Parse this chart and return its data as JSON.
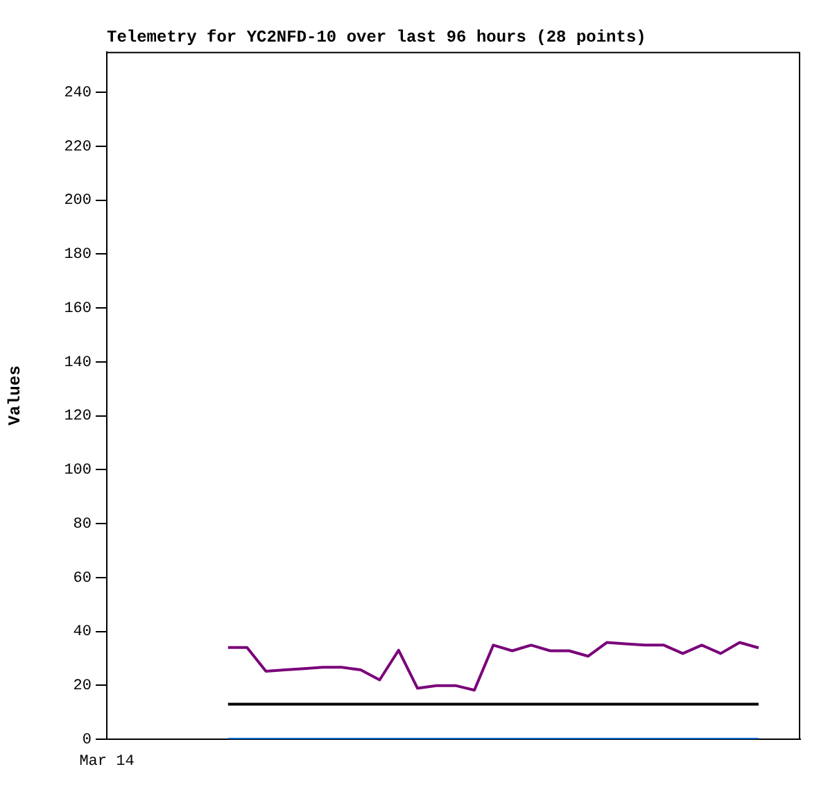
{
  "chart_data": {
    "type": "line",
    "title": "Telemetry for YC2NFD-10 over last 96 hours (28 points)",
    "ylabel": "Values",
    "categories": [
      null,
      null,
      null,
      null,
      null,
      null,
      null,
      null,
      null,
      null,
      null,
      null,
      null,
      null,
      null,
      null,
      null,
      null,
      null,
      null,
      null,
      null,
      null,
      null,
      null,
      null,
      null,
      null,
      null
    ],
    "series": [
      {
        "color": "#7a007a",
        "values": [
          34,
          34,
          25.2,
          25.7,
          26.2,
          26.7,
          26.7,
          25.7,
          22,
          33,
          18.9,
          19.9,
          19.9,
          18.2,
          34.9,
          32.8,
          34.9,
          32.8,
          32.8,
          30.8,
          35.9,
          35.4,
          34.9,
          34.9,
          31.8,
          34.9,
          31.8,
          35.9,
          33.9
        ]
      },
      {
        "color": "#000000",
        "values": [
          13,
          13,
          13,
          13,
          13,
          13,
          13,
          13,
          13,
          13,
          13,
          13,
          13,
          13,
          13,
          13,
          13,
          13,
          13,
          13,
          13,
          13,
          13,
          13,
          13,
          13,
          13,
          13,
          13
        ]
      },
      {
        "color": "#0066cc",
        "values": [
          0,
          0,
          0,
          0,
          0,
          0,
          0,
          0,
          0,
          0,
          0,
          0,
          0,
          0,
          0,
          0,
          0,
          0,
          0,
          0,
          0,
          0,
          0,
          0,
          0,
          0,
          0,
          0,
          0
        ]
      }
    ],
    "annotations": [
      "Mar 14"
    ],
    "ylim": [
      0,
      255
    ],
    "yticks": [
      0,
      20,
      40,
      60,
      80,
      100,
      120,
      140,
      160,
      180,
      200,
      220,
      240
    ],
    "grid": false,
    "legend": false,
    "marker": "none",
    "line_style": "solid"
  }
}
